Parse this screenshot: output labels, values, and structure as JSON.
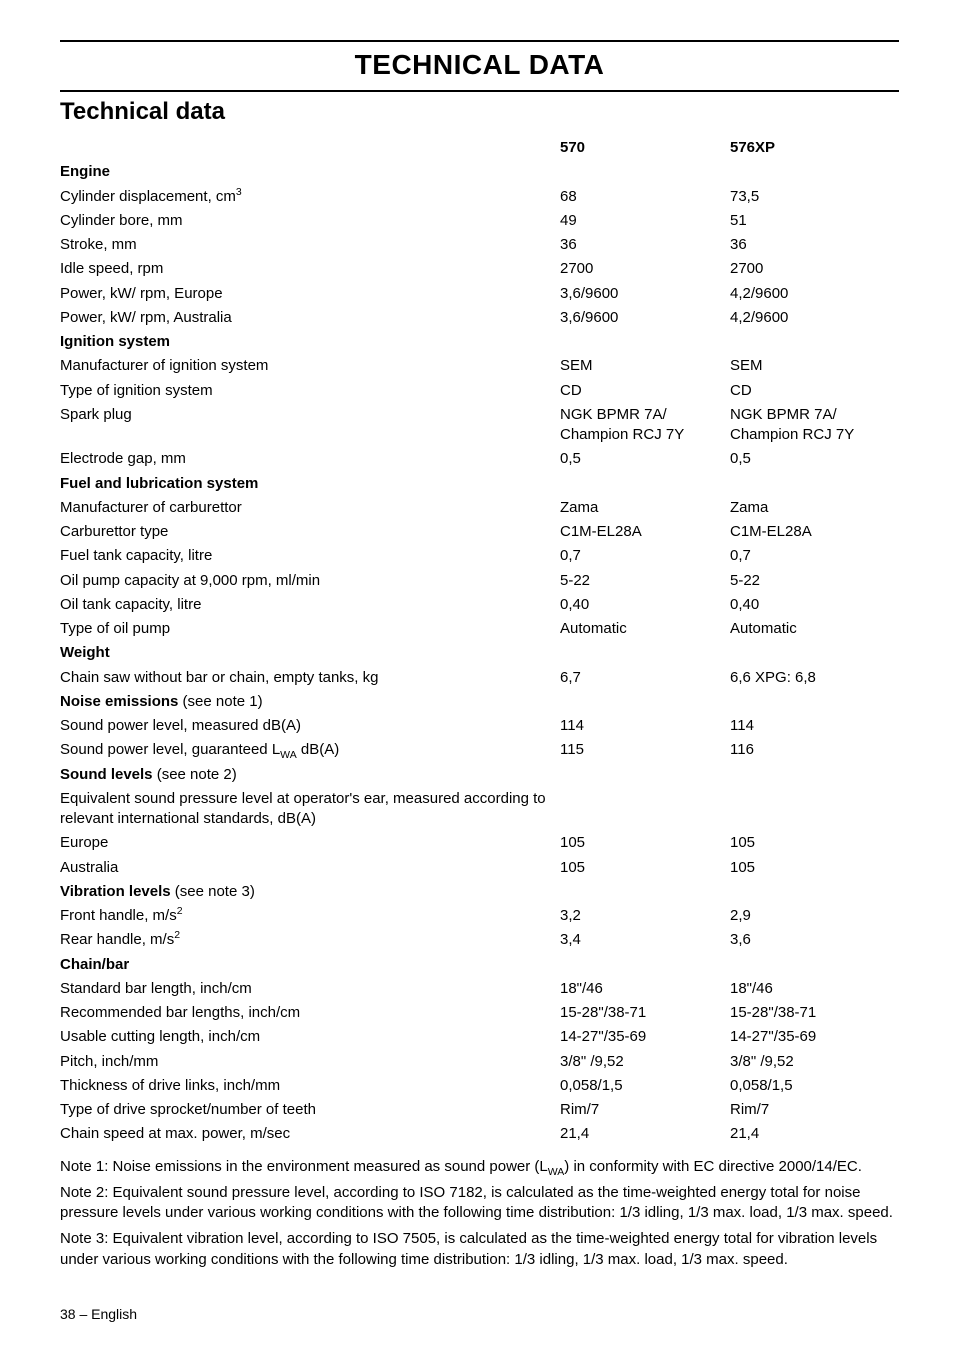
{
  "page": {
    "title_upper": "TECHNICAL DATA",
    "title": "Technical data",
    "page_number": "38 – English",
    "text_color": "#000000",
    "background_color": "#ffffff",
    "rule_color": "#000000"
  },
  "columns": {
    "model_a": "570",
    "model_b": "576XP"
  },
  "sections": [
    {
      "heading": "Engine",
      "rows": [
        {
          "label_html": "Cylinder displacement, cm<sup>3</sup>",
          "a": "68",
          "b": "73,5"
        },
        {
          "label_html": "Cylinder bore, mm",
          "a": "49",
          "b": "51"
        },
        {
          "label_html": "Stroke, mm",
          "a": "36",
          "b": "36"
        },
        {
          "label_html": "Idle speed, rpm",
          "a": "2700",
          "b": "2700"
        },
        {
          "label_html": "Power, kW/ rpm, Europe",
          "a": "3,6/9600",
          "b": "4,2/9600"
        },
        {
          "label_html": "Power, kW/ rpm, Australia",
          "a": "3,6/9600",
          "b": "4,2/9600"
        }
      ]
    },
    {
      "heading": "Ignition system",
      "rows": [
        {
          "label_html": "Manufacturer of ignition system",
          "a": "SEM",
          "b": "SEM"
        },
        {
          "label_html": "Type of ignition system",
          "a": "CD",
          "b": "CD"
        },
        {
          "label_html": "Spark plug",
          "a": "NGK BPMR 7A/<br>Champion RCJ 7Y",
          "b": "NGK BPMR 7A/<br>Champion RCJ 7Y"
        },
        {
          "label_html": "Electrode gap, mm",
          "a": "0,5",
          "b": "0,5"
        }
      ]
    },
    {
      "heading": "Fuel and lubrication system",
      "rows": [
        {
          "label_html": "Manufacturer of carburettor",
          "a": "Zama",
          "b": "Zama"
        },
        {
          "label_html": "Carburettor type",
          "a": "C1M-EL28A",
          "b": "C1M-EL28A"
        },
        {
          "label_html": "Fuel tank capacity, litre",
          "a": "0,7",
          "b": "0,7"
        },
        {
          "label_html": "Oil pump capacity at 9,000 rpm, ml/min",
          "a": "5-22",
          "b": "5-22"
        },
        {
          "label_html": "Oil tank capacity, litre",
          "a": "0,40",
          "b": "0,40"
        },
        {
          "label_html": "Type of oil pump",
          "a": "Automatic",
          "b": "Automatic"
        }
      ]
    },
    {
      "heading": "Weight",
      "rows": [
        {
          "label_html": "Chain saw without bar or chain, empty tanks, kg",
          "a": "6,7",
          "b": "6,6 XPG: 6,8"
        }
      ]
    },
    {
      "heading_html": "<b>Noise emissions</b> (see note 1)",
      "rows": [
        {
          "label_html": "Sound power level, measured dB(A)",
          "a": "114",
          "b": "114"
        },
        {
          "label_html": "Sound power level, guaranteed L<sub>WA</sub> dB(A)",
          "a": "115",
          "b": "116"
        }
      ]
    },
    {
      "heading_html": "<b>Sound levels</b> (see note 2)",
      "rows": [
        {
          "label_html": "Equivalent sound pressure level at operator's ear, measured according to relevant international standards, dB(A)",
          "a": "",
          "b": ""
        },
        {
          "label_html": "Europe",
          "a": "105",
          "b": "105"
        },
        {
          "label_html": "Australia",
          "a": "105",
          "b": "105"
        }
      ]
    },
    {
      "heading_html": "<b>Vibration levels</b> (see note 3)",
      "rows": [
        {
          "label_html": "Front handle, m/s<sup>2</sup>",
          "a": "3,2",
          "b": "2,9"
        },
        {
          "label_html": "Rear handle, m/s<sup>2</sup>",
          "a": "3,4",
          "b": "3,6"
        }
      ]
    },
    {
      "heading": "Chain/bar",
      "rows": [
        {
          "label_html": "Standard bar length, inch/cm",
          "a": "18\"/46",
          "b": "18\"/46"
        },
        {
          "label_html": "Recommended bar lengths, inch/cm",
          "a": "15-28\"/38-71",
          "b": "15-28\"/38-71"
        },
        {
          "label_html": "Usable cutting length, inch/cm",
          "a": "14-27\"/35-69",
          "b": "14-27\"/35-69"
        },
        {
          "label_html": "Pitch, inch/mm",
          "a": "3/8\" /9,52",
          "b": "3/8\" /9,52"
        },
        {
          "label_html": "Thickness of drive links, inch/mm",
          "a": "0,058/1,5",
          "b": "0,058/1,5"
        },
        {
          "label_html": "Type of drive sprocket/number of teeth",
          "a": "Rim/7",
          "b": "Rim/7"
        },
        {
          "label_html": "Chain speed at max. power, m/sec",
          "a": "21,4",
          "b": "21,4"
        }
      ]
    }
  ],
  "notes": [
    "Note 1: Noise emissions in the environment measured as sound power (L<sub>WA</sub>) in conformity with EC directive 2000/14/EC.",
    "Note 2: Equivalent sound pressure level, according to ISO 7182, is calculated as the time-weighted energy total for noise pressure levels under various working conditions with the following time distribution: 1/3 idling, 1/3 max. load, 1/3 max. speed.",
    "Note 3: Equivalent vibration level, according to ISO 7505, is calculated as the time-weighted energy total for vibration levels under various working conditions with the following time distribution: 1/3 idling, 1/3 max. load, 1/3 max. speed."
  ]
}
